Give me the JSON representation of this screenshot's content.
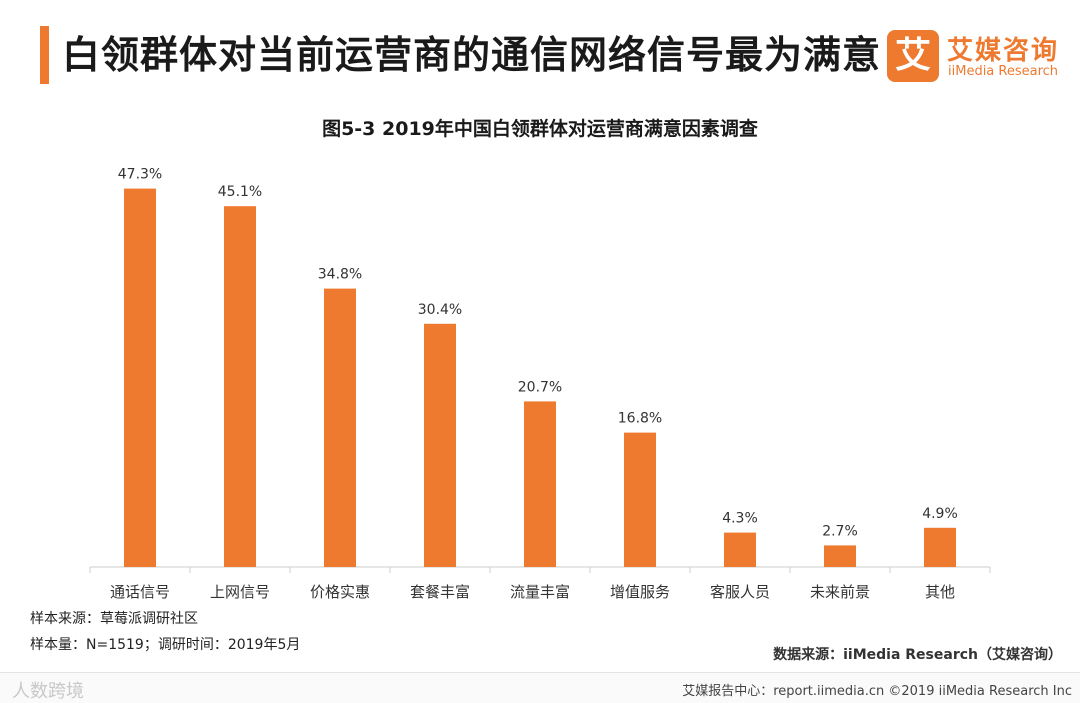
{
  "header": {
    "headline": "白领群体对当前运营商的通信网络信号最为满意",
    "logo_mark": "艾",
    "logo_cn": "艾媒咨询",
    "logo_en": "iiMedia Research"
  },
  "chart_data": {
    "type": "bar",
    "title": "图5-3 2019年中国白领群体对运营商满意因素调查",
    "categories": [
      "通话信号",
      "上网信号",
      "价格实惠",
      "套餐丰富",
      "流量丰富",
      "增值服务",
      "客服人员",
      "未来前景",
      "其他"
    ],
    "values": [
      47.3,
      45.1,
      34.8,
      30.4,
      20.7,
      16.8,
      4.3,
      2.7,
      4.9
    ],
    "value_labels": [
      "47.3%",
      "45.1%",
      "34.8%",
      "30.4%",
      "20.7%",
      "16.8%",
      "4.3%",
      "2.7%",
      "4.9%"
    ],
    "unit": "%",
    "ylim": [
      0,
      50
    ],
    "grid": false,
    "bar_color": "#ee7a30"
  },
  "notes": {
    "sample_source": "样本来源：草莓派调研社区",
    "sample_size": "样本量：N=1519；调研时间：2019年5月",
    "data_source": "数据来源：iiMedia Research（艾媒咨询）"
  },
  "footer": {
    "watermark": "人数跨境",
    "copyright": "艾媒报告中心：report.iimedia.cn  ©2019  iiMedia Research  Inc"
  }
}
